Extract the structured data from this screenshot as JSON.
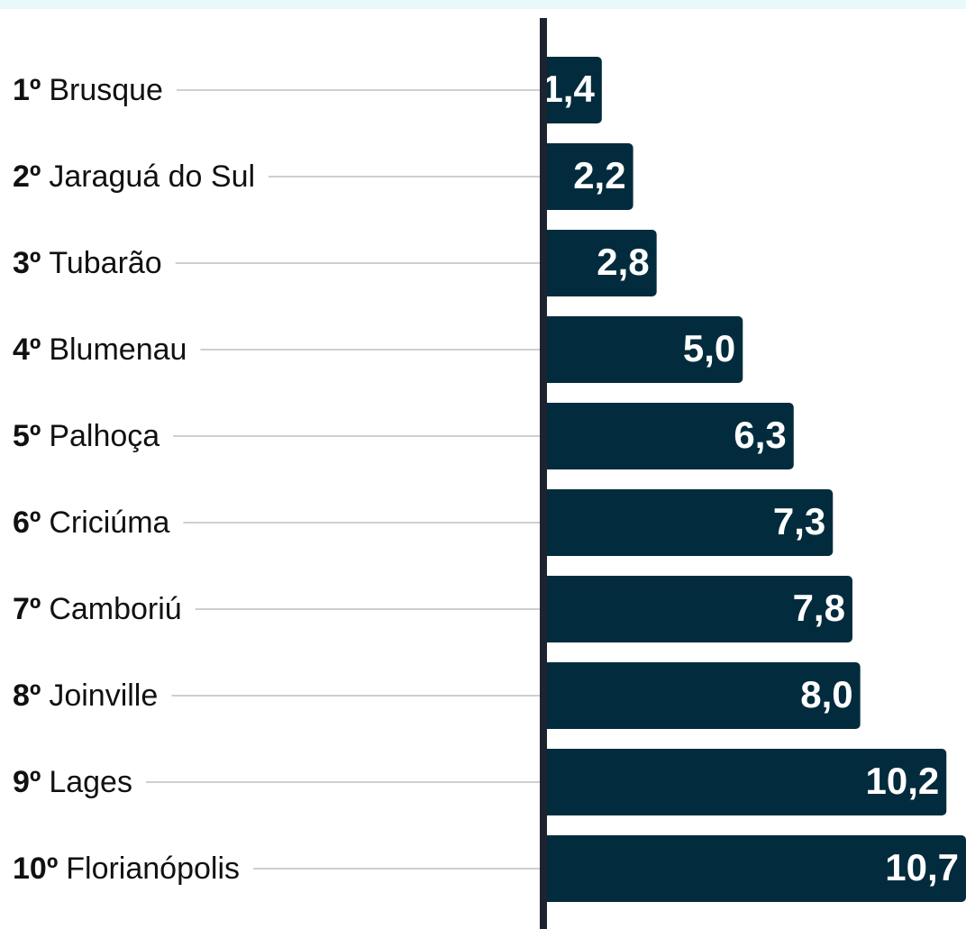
{
  "chart_data": {
    "type": "bar",
    "orientation": "horizontal",
    "ranks": [
      "1º",
      "2º",
      "3º",
      "4º",
      "5º",
      "6º",
      "7º",
      "8º",
      "9º",
      "10º"
    ],
    "categories": [
      "Brusque",
      "Jaraguá do Sul",
      "Tubarão",
      "Blumenau",
      "Palhoça",
      "Criciúma",
      "Camboriú",
      "Joinville",
      "Lages",
      "Florianópolis"
    ],
    "values": [
      1.4,
      2.2,
      2.8,
      5.0,
      6.3,
      7.3,
      7.8,
      8.0,
      10.2,
      10.7
    ],
    "value_labels": [
      "1,4",
      "2,2",
      "2,8",
      "5,0",
      "6,3",
      "7,3",
      "7,8",
      "8,0",
      "10,2",
      "10,7"
    ],
    "color": "#022c3d"
  }
}
